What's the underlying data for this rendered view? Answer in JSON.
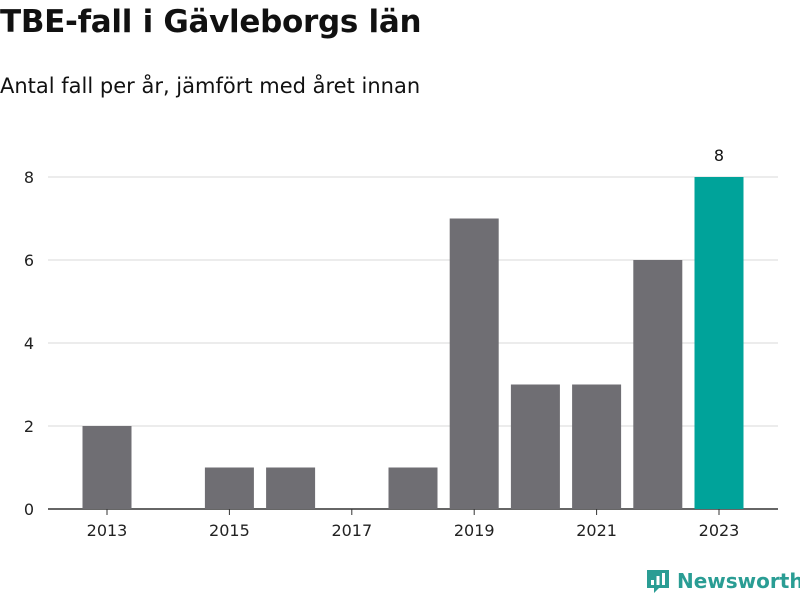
{
  "title": "TBE-fall i Gävleborgs län",
  "subtitle": "Antal fall per år, jämfört med året innan",
  "brand": {
    "name": "Newsworthy",
    "icon": "newsworthy-logo-icon",
    "color": "#2a9d94"
  },
  "chart_data": {
    "type": "bar",
    "title": "TBE-fall i Gävleborgs län",
    "subtitle": "Antal fall per år, jämfört med året innan",
    "xlabel": "",
    "ylabel": "",
    "categories": [
      "2013",
      "2014",
      "2015",
      "2016",
      "2017",
      "2018",
      "2019",
      "2020",
      "2021",
      "2022",
      "2023"
    ],
    "values": [
      2,
      0,
      1,
      1,
      0,
      1,
      7,
      3,
      3,
      6,
      8
    ],
    "x_tick_labels": [
      "2013",
      "2015",
      "2017",
      "2019",
      "2021",
      "2023"
    ],
    "y_ticks": [
      0,
      2,
      4,
      6,
      8
    ],
    "ylim": [
      0,
      8
    ],
    "grid": "horizontal",
    "legend": "none",
    "bar_color": "#6f6e73",
    "highlight_color": "#00a39a",
    "highlight_category": "2023",
    "data_labels": [
      {
        "category": "2023",
        "text": "8"
      }
    ]
  }
}
